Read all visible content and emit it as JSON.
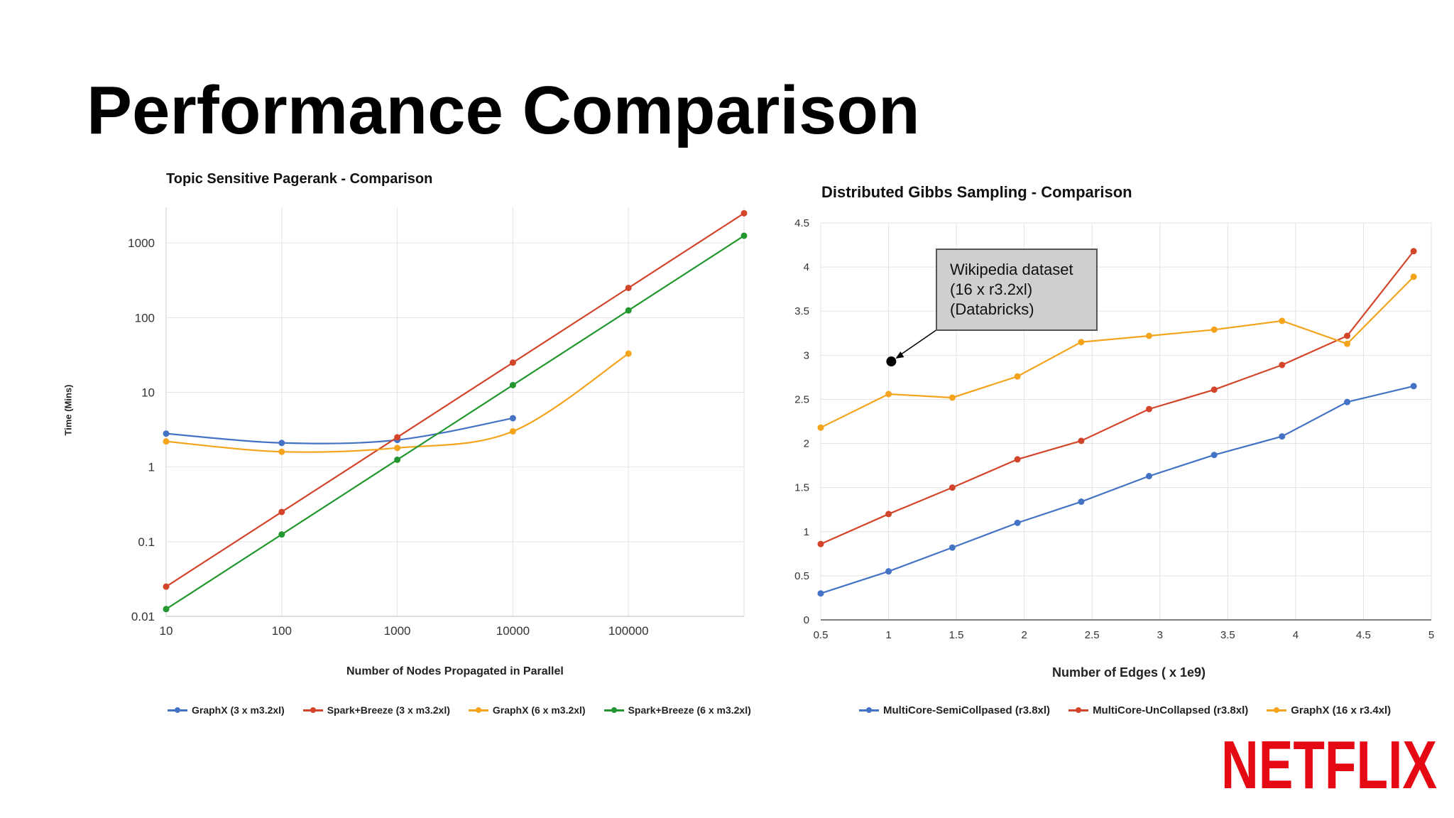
{
  "slide": {
    "title": "Performance Comparison"
  },
  "colors": {
    "blue": "#4472c4",
    "red": "#d2452b",
    "orange": "#f4a41c",
    "green": "#22962f",
    "netflix": "#e50914"
  },
  "logo": {
    "text": "NETFLIX"
  },
  "chart_data": [
    {
      "type": "line",
      "title": "Topic Sensitive Pagerank - Comparison",
      "xlabel": "Number of Nodes Propagated in Parallel",
      "ylabel": "Time (Mins)",
      "x_scale": "log",
      "y_scale": "log",
      "x_tick_labels": [
        "10",
        "100",
        "1000",
        "10000",
        "100000"
      ],
      "y_tick_labels": [
        "1000",
        "100",
        "10",
        "1",
        "0.1",
        "0.01"
      ],
      "xlim": [
        10,
        1000000
      ],
      "ylim": [
        0.01,
        3000
      ],
      "grid": true,
      "legend_position": "bottom",
      "series": [
        {
          "name": "GraphX (3 x m3.2xl)",
          "color": "blue",
          "x": [
            10,
            100,
            1000,
            10000
          ],
          "y": [
            2.8,
            2.1,
            2.3,
            4.5
          ],
          "smooth": true
        },
        {
          "name": "Spark+Breeze (3 x m3.2xl)",
          "color": "red",
          "x": [
            10,
            100,
            1000,
            10000,
            100000,
            1000000
          ],
          "y": [
            0.025,
            0.25,
            2.5,
            25,
            250,
            2500
          ],
          "smooth": false
        },
        {
          "name": "GraphX (6 x m3.2xl)",
          "color": "orange",
          "x": [
            10,
            100,
            1000,
            10000,
            100000
          ],
          "y": [
            2.2,
            1.6,
            1.8,
            3.0,
            33
          ],
          "smooth": true
        },
        {
          "name": "Spark+Breeze (6 x m3.2xl)",
          "color": "green",
          "x": [
            10,
            100,
            1000,
            10000,
            100000,
            1000000
          ],
          "y": [
            0.0125,
            0.125,
            1.25,
            12.5,
            125,
            1250
          ],
          "smooth": false
        }
      ]
    },
    {
      "type": "line",
      "title": "Distributed Gibbs Sampling - Comparison",
      "xlabel": "Number of Edges ( x 1e9)",
      "x_tick_labels": [
        "0.5",
        "1",
        "1.5",
        "2",
        "2.5",
        "3",
        "3.5",
        "4",
        "4.5",
        "5"
      ],
      "y_tick_labels": [
        "4.5",
        "4",
        "3.5",
        "3",
        "2.5",
        "2",
        "1.5",
        "1",
        "0.5",
        "0"
      ],
      "xlim": [
        0.5,
        5
      ],
      "ylim": [
        0,
        4.5
      ],
      "grid": true,
      "legend_position": "bottom",
      "annotation": {
        "lines": [
          "Wikipedia dataset",
          "(16 x r3.2xl)",
          "(Databricks)"
        ],
        "point": {
          "x": 1.02,
          "y": 2.93
        }
      },
      "series": [
        {
          "name": "MultiCore-SemiCollpased (r3.8xl)",
          "color": "blue",
          "x": [
            0.5,
            1.0,
            1.47,
            1.95,
            2.42,
            2.92,
            3.4,
            3.9,
            4.38,
            4.87
          ],
          "y": [
            0.3,
            0.55,
            0.82,
            1.1,
            1.34,
            1.63,
            1.87,
            2.08,
            2.47,
            2.65
          ]
        },
        {
          "name": "MultiCore-UnCollapsed (r3.8xl)",
          "color": "red",
          "x": [
            0.5,
            1.0,
            1.47,
            1.95,
            2.42,
            2.92,
            3.4,
            3.9,
            4.38,
            4.87
          ],
          "y": [
            0.86,
            1.2,
            1.5,
            1.82,
            2.03,
            2.39,
            2.61,
            2.89,
            3.22,
            4.18
          ]
        },
        {
          "name": "GraphX (16 x r3.4xl)",
          "color": "orange",
          "x": [
            0.5,
            1.0,
            1.47,
            1.95,
            2.42,
            2.92,
            3.4,
            3.9,
            4.38,
            4.87
          ],
          "y": [
            2.18,
            2.56,
            2.52,
            2.76,
            3.15,
            3.22,
            3.29,
            3.39,
            3.13,
            3.89
          ]
        }
      ]
    }
  ]
}
